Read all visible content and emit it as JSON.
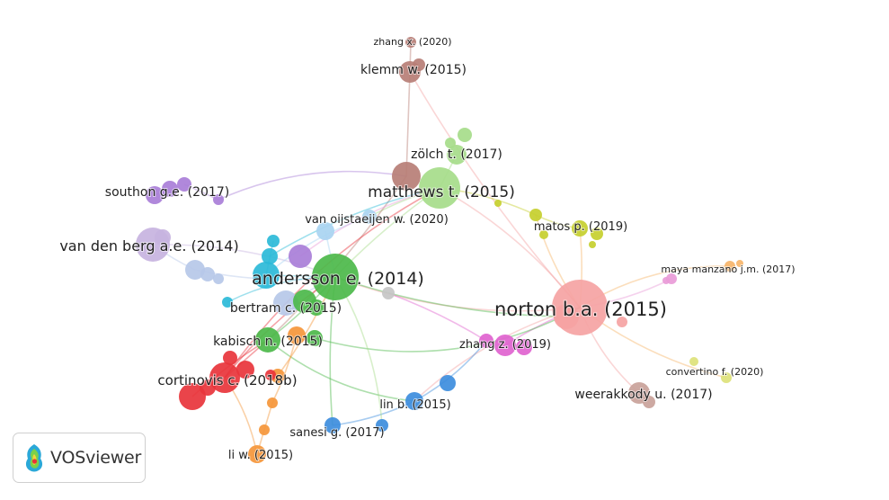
{
  "network": {
    "colors": {
      "red": "#e8343b",
      "green": "#4cb84a",
      "lightgreen": "#a6dc8a",
      "teal": "#2bbad8",
      "purple": "#a97ed8",
      "lavender": "#c7b3e0",
      "paleblue": "#b6c8e8",
      "orange": "#f5963a",
      "peach": "#f7b56a",
      "blue": "#3d8ddd",
      "pink": "#e063cf",
      "salmon": "#f5a3a3",
      "brown": "#b77e76",
      "taupe": "#c9a29a",
      "olive": "#c6cf2e",
      "grey": "#c6c6c6",
      "lime": "#dde27a",
      "rose": "#e99bd8",
      "lightblue": "#a9d4f1"
    },
    "labels": [
      {
        "id": "norton",
        "text": "norton b.a. (2015)"
      },
      {
        "id": "andersson",
        "text": "andersson e. (2014)"
      },
      {
        "id": "matthews",
        "text": "matthews t. (2015)"
      },
      {
        "id": "vandenberg",
        "text": "van den berg a.e. (2014)"
      },
      {
        "id": "cortinovis",
        "text": "cortinovis c. (2018b)"
      },
      {
        "id": "kabisch",
        "text": "kabisch n. (2015)"
      },
      {
        "id": "bertram",
        "text": "bertram c. (2015)"
      },
      {
        "id": "klemm",
        "text": "klemm w. (2015)"
      },
      {
        "id": "zolch",
        "text": "zölch t. (2017)"
      },
      {
        "id": "southon",
        "text": "southon g.e. (2017)"
      },
      {
        "id": "vanoijstaeijen",
        "text": "van oijstaeijen w. (2020)"
      },
      {
        "id": "matos",
        "text": "matos p. (2019)"
      },
      {
        "id": "zhangz",
        "text": "zhang z. (2019)"
      },
      {
        "id": "linb",
        "text": "lin b. (2015)"
      },
      {
        "id": "weerakkody",
        "text": "weerakkody u. (2017)"
      },
      {
        "id": "sanesi",
        "text": "sanesi g. (2017)"
      },
      {
        "id": "liw",
        "text": "li w. (2015)"
      },
      {
        "id": "zhangx",
        "text": "zhang x. (2020)"
      },
      {
        "id": "maya",
        "text": "maya manzano j.m. (2017)"
      },
      {
        "id": "convertino",
        "text": "convertino f. (2020)"
      }
    ]
  },
  "logo": {
    "text": "VOSviewer",
    "icon": "vosviewer-logo-icon"
  }
}
